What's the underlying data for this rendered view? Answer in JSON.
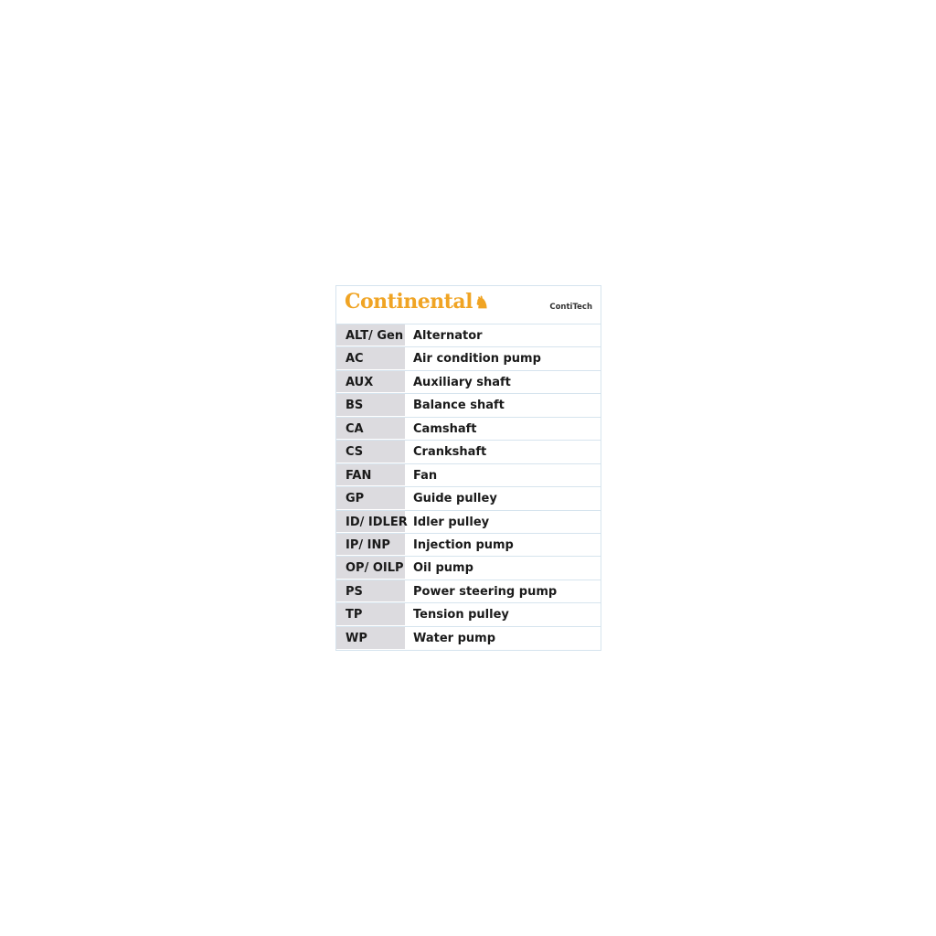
{
  "header": {
    "logo_text": "Continental",
    "brand": "ContiTech",
    "logo_color": "#f0a424"
  },
  "rows": [
    {
      "abbr": "ALT/ Gen",
      "name": "Alternator"
    },
    {
      "abbr": "AC",
      "name": "Air condition pump"
    },
    {
      "abbr": "AUX",
      "name": "Auxiliary shaft"
    },
    {
      "abbr": "BS",
      "name": "Balance shaft"
    },
    {
      "abbr": "CA",
      "name": "Camshaft"
    },
    {
      "abbr": "CS",
      "name": "Crankshaft"
    },
    {
      "abbr": "FAN",
      "name": "Fan"
    },
    {
      "abbr": "GP",
      "name": "Guide pulley"
    },
    {
      "abbr": "ID/ IDLER",
      "name": "Idler pulley"
    },
    {
      "abbr": "IP/ INP",
      "name": "Injection pump"
    },
    {
      "abbr": "OP/ OILP",
      "name": "Oil pump"
    },
    {
      "abbr": "PS",
      "name": "Power steering pump"
    },
    {
      "abbr": "TP",
      "name": "Tension pulley"
    },
    {
      "abbr": "WP",
      "name": "Water pump"
    }
  ]
}
